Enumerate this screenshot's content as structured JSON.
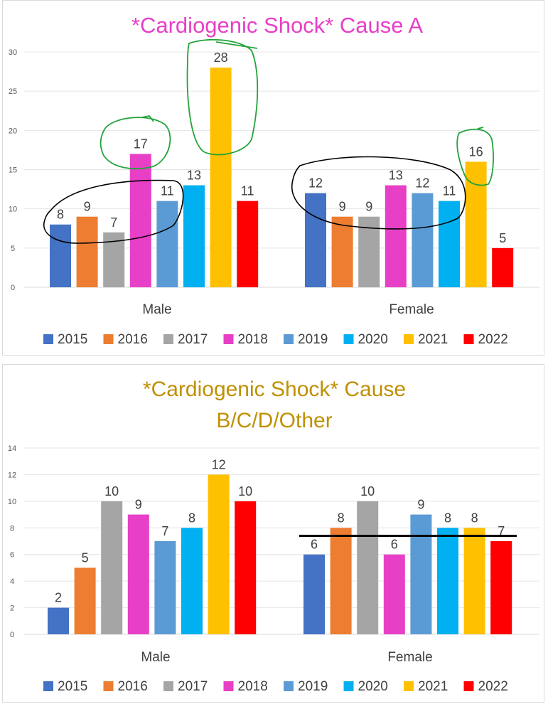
{
  "chart_data": [
    {
      "type": "bar",
      "title": "*Cardiogenic Shock* Cause A",
      "title_color": "#e83fc7",
      "categories": [
        "Male",
        "Female"
      ],
      "ylim": [
        0,
        30
      ],
      "yticks": [
        0,
        5,
        10,
        15,
        20,
        25,
        30
      ],
      "series": [
        {
          "name": "2015",
          "color": "#4472c4",
          "values": [
            8,
            12
          ]
        },
        {
          "name": "2016",
          "color": "#ed7d31",
          "values": [
            9,
            9
          ]
        },
        {
          "name": "2017",
          "color": "#a5a5a5",
          "values": [
            7,
            9
          ]
        },
        {
          "name": "2018",
          "color": "#e83fc7",
          "values": [
            17,
            13
          ]
        },
        {
          "name": "2019",
          "color": "#5b9bd5",
          "values": [
            11,
            12
          ]
        },
        {
          "name": "2020",
          "color": "#00b0f0",
          "values": [
            13,
            11
          ]
        },
        {
          "name": "2021",
          "color": "#ffc000",
          "values": [
            28,
            16
          ]
        },
        {
          "name": "2022",
          "color": "#ff0000",
          "values": [
            11,
            5
          ]
        }
      ],
      "legend_position": "bottom",
      "annotations": "hand-drawn circles: black around Male 2015-2019 and Female 2015-2020; green around Male 2018, Male 2021 and Female 2021"
    },
    {
      "type": "bar",
      "title_lines": [
        "*Cardiogenic Shock* Cause",
        "B/C/D/Other"
      ],
      "title_color": "#bf9000",
      "categories": [
        "Male",
        "Female"
      ],
      "ylim": [
        0,
        14
      ],
      "yticks": [
        0,
        2,
        4,
        6,
        8,
        10,
        12,
        14
      ],
      "series": [
        {
          "name": "2015",
          "color": "#4472c4",
          "values": [
            2,
            6
          ]
        },
        {
          "name": "2016",
          "color": "#ed7d31",
          "values": [
            5,
            8
          ]
        },
        {
          "name": "2017",
          "color": "#a5a5a5",
          "values": [
            10,
            10
          ]
        },
        {
          "name": "2018",
          "color": "#e83fc7",
          "values": [
            9,
            6
          ]
        },
        {
          "name": "2019",
          "color": "#5b9bd5",
          "values": [
            7,
            9
          ]
        },
        {
          "name": "2020",
          "color": "#00b0f0",
          "values": [
            8,
            8
          ]
        },
        {
          "name": "2021",
          "color": "#ffc000",
          "values": [
            12,
            8
          ]
        },
        {
          "name": "2022",
          "color": "#ff0000",
          "values": [
            10,
            7
          ]
        }
      ],
      "legend_position": "bottom",
      "annotations": "hand-drawn horizontal black line across the Female group at about 7.4"
    }
  ]
}
